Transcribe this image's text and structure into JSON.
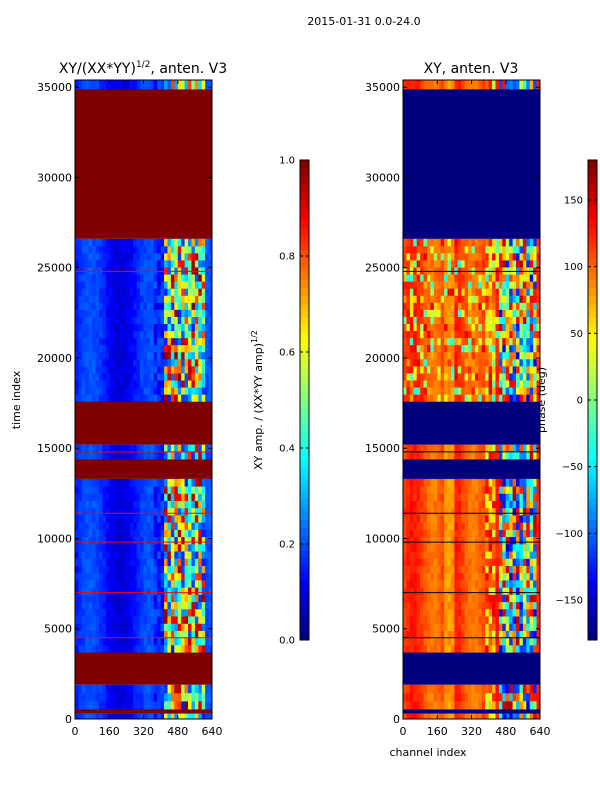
{
  "figure": {
    "suptitle": "2015-01-31 0.0-24.0",
    "jet_colors": [
      "#00007f",
      "#0000ff",
      "#0080ff",
      "#00ffff",
      "#80ff80",
      "#ffff00",
      "#ff8000",
      "#ff0000",
      "#7f0000"
    ]
  },
  "chart_data": [
    {
      "type": "heatmap",
      "title_main": "XY/(XX*YY)",
      "title_exp": "1/2",
      "title_tail": ", anten. V3",
      "xlabel": "",
      "ylabel": "time index",
      "xlim": [
        0,
        640
      ],
      "ylim": [
        0,
        35400
      ],
      "xticks": [
        0,
        160,
        320,
        480,
        640
      ],
      "yticks": [
        0,
        5000,
        10000,
        15000,
        20000,
        25000,
        30000,
        35000
      ],
      "xtick_labels": [
        "0",
        "160",
        "320",
        "480",
        "640"
      ],
      "ytick_labels": [
        "0",
        "5000",
        "10000",
        "15000",
        "20000",
        "25000",
        "30000",
        "35000"
      ],
      "colormap": "jet",
      "bands": [
        {
          "from": 0,
          "to": 300,
          "pattern": "amp_active"
        },
        {
          "from": 300,
          "to": 550,
          "pattern": "flagged"
        },
        {
          "from": 550,
          "to": 1900,
          "pattern": "amp_active"
        },
        {
          "from": 1900,
          "to": 3700,
          "pattern": "flagged"
        },
        {
          "from": 3700,
          "to": 13300,
          "pattern": "amp_active"
        },
        {
          "from": 13300,
          "to": 14400,
          "pattern": "flagged"
        },
        {
          "from": 14400,
          "to": 15200,
          "pattern": "amp_active"
        },
        {
          "from": 15200,
          "to": 17600,
          "pattern": "flagged"
        },
        {
          "from": 17600,
          "to": 26600,
          "pattern": "amp_active"
        },
        {
          "from": 26600,
          "to": 34900,
          "pattern": "flagged"
        },
        {
          "from": 34900,
          "to": 35400,
          "pattern": "amp_active"
        }
      ],
      "flag_lines": [
        4500,
        7000,
        9800,
        11400,
        14800,
        24800
      ]
    },
    {
      "type": "heatmap",
      "title": "XY, anten. V3",
      "xlabel": "channel index",
      "ylabel": "",
      "xlim": [
        0,
        640
      ],
      "ylim": [
        0,
        35400
      ],
      "xticks": [
        0,
        160,
        320,
        480,
        640
      ],
      "yticks": [
        0,
        5000,
        10000,
        15000,
        20000,
        25000,
        30000,
        35000
      ],
      "xtick_labels": [
        "0",
        "160",
        "320",
        "480",
        "640"
      ],
      "ytick_labels": [
        "0",
        "5000",
        "10000",
        "15000",
        "20000",
        "25000",
        "30000",
        "35000"
      ],
      "colormap": "jet",
      "bands": [
        {
          "from": 0,
          "to": 300,
          "pattern": "phase_active"
        },
        {
          "from": 300,
          "to": 550,
          "pattern": "flagged"
        },
        {
          "from": 550,
          "to": 1900,
          "pattern": "phase_active"
        },
        {
          "from": 1900,
          "to": 3700,
          "pattern": "flagged"
        },
        {
          "from": 3700,
          "to": 13300,
          "pattern": "phase_active"
        },
        {
          "from": 13300,
          "to": 14400,
          "pattern": "flagged"
        },
        {
          "from": 14400,
          "to": 15200,
          "pattern": "phase_active"
        },
        {
          "from": 15200,
          "to": 17600,
          "pattern": "flagged"
        },
        {
          "from": 17600,
          "to": 26600,
          "pattern": "phase_active"
        },
        {
          "from": 26600,
          "to": 34900,
          "pattern": "flagged"
        },
        {
          "from": 34900,
          "to": 35400,
          "pattern": "phase_active"
        }
      ],
      "flag_lines": [
        4500,
        7000,
        9800,
        11400,
        14800,
        24800
      ]
    }
  ],
  "colorbars": [
    {
      "label_main": "XY amp. / (XX*YY amp)",
      "label_exp": "1/2",
      "vmin": 0.0,
      "vmax": 1.0,
      "ticks": [
        0.0,
        0.2,
        0.4,
        0.6,
        0.8,
        1.0
      ],
      "tick_labels": [
        "0.0",
        "0.2",
        "0.4",
        "0.6",
        "0.8",
        "1.0"
      ]
    },
    {
      "label": "phase (deg)",
      "vmin": -180,
      "vmax": 180,
      "ticks": [
        -150,
        -100,
        -50,
        0,
        50,
        100,
        150
      ],
      "tick_labels": [
        "−150",
        "−100",
        "−50",
        "0",
        "50",
        "100",
        "150"
      ]
    }
  ]
}
